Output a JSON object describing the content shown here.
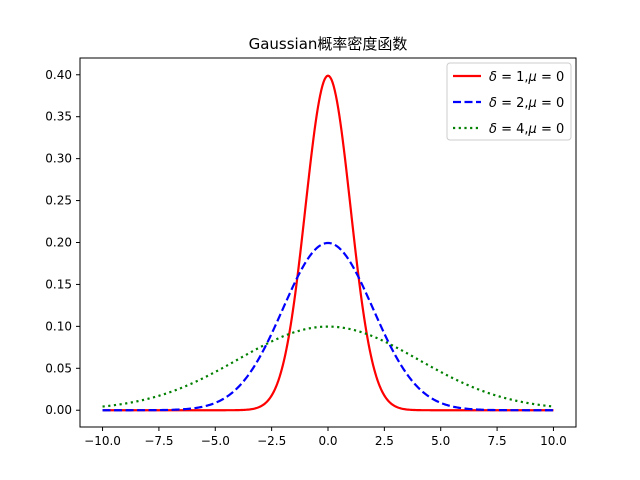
{
  "chart_data": {
    "type": "line",
    "title": "Gaussian概率密度函数",
    "xlabel": "",
    "ylabel": "",
    "xlim": [
      -11.0,
      11.0
    ],
    "ylim": [
      -0.02,
      0.42
    ],
    "xticks": [
      -10.0,
      -7.5,
      -5.0,
      -2.5,
      0.0,
      2.5,
      5.0,
      7.5,
      10.0
    ],
    "xtick_labels": [
      "−10.0",
      "−7.5",
      "−5.0",
      "−2.5",
      "0.0",
      "2.5",
      "5.0",
      "7.5",
      "10.0"
    ],
    "yticks": [
      0.0,
      0.05,
      0.1,
      0.15,
      0.2,
      0.25,
      0.3,
      0.35,
      0.4
    ],
    "ytick_labels": [
      "0.00",
      "0.05",
      "0.10",
      "0.15",
      "0.20",
      "0.25",
      "0.30",
      "0.35",
      "0.40"
    ],
    "grid": false,
    "legend_position": "top-right",
    "x": [
      -10,
      -9,
      -8,
      -7,
      -6,
      -5,
      -4,
      -3.5,
      -3,
      -2.5,
      -2,
      -1.5,
      -1,
      -0.5,
      0,
      0.5,
      1,
      1.5,
      2,
      2.5,
      3,
      3.5,
      4,
      5,
      6,
      7,
      8,
      9,
      10
    ],
    "series": [
      {
        "name": "δ = 1,μ = 0",
        "legend_parts": [
          [
            "δ",
            true
          ],
          [
            " = 1,",
            false
          ],
          [
            "μ",
            true
          ],
          [
            " = 0",
            false
          ]
        ],
        "color": "#ff0000",
        "dash": "solid",
        "values": [
          0.0,
          0.0,
          0.0,
          0.0,
          0.0,
          0.0,
          0.0001,
          0.0009,
          0.0044,
          0.0175,
          0.054,
          0.1295,
          0.242,
          0.3521,
          0.3989,
          0.3521,
          0.242,
          0.1295,
          0.054,
          0.0175,
          0.0044,
          0.0009,
          0.0001,
          0.0,
          0.0,
          0.0,
          0.0,
          0.0,
          0.0
        ]
      },
      {
        "name": "δ = 2,μ = 0",
        "legend_parts": [
          [
            "δ",
            true
          ],
          [
            " = 2,",
            false
          ],
          [
            "μ",
            true
          ],
          [
            " = 0",
            false
          ]
        ],
        "color": "#0000ff",
        "dash": "dashed",
        "values": [
          0.0,
          0.0,
          0.0001,
          0.0004,
          0.0022,
          0.0088,
          0.027,
          0.0431,
          0.0648,
          0.0913,
          0.121,
          0.1506,
          0.176,
          0.1933,
          0.1995,
          0.1933,
          0.176,
          0.1506,
          0.121,
          0.0913,
          0.0648,
          0.0431,
          0.027,
          0.0088,
          0.0022,
          0.0004,
          0.0001,
          0.0,
          0.0
        ]
      },
      {
        "name": "δ = 4,μ = 0",
        "legend_parts": [
          [
            "δ",
            true
          ],
          [
            " = 4,",
            false
          ],
          [
            "μ",
            true
          ],
          [
            " = 0",
            false
          ]
        ],
        "color": "#008000",
        "dash": "dotted",
        "values": [
          0.0044,
          0.008,
          0.0135,
          0.0216,
          0.0324,
          0.0457,
          0.0605,
          0.0682,
          0.0753,
          0.0821,
          0.088,
          0.0929,
          0.0967,
          0.0992,
          0.0997,
          0.0992,
          0.0967,
          0.0929,
          0.088,
          0.0821,
          0.0753,
          0.0682,
          0.0605,
          0.0457,
          0.0324,
          0.0216,
          0.0135,
          0.008,
          0.0044
        ]
      }
    ]
  }
}
